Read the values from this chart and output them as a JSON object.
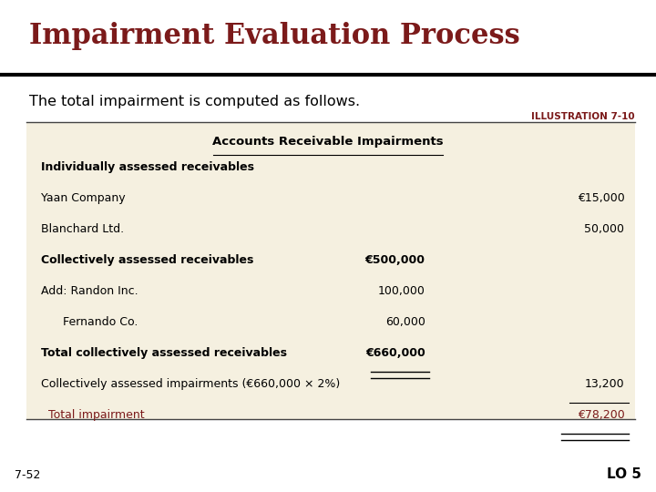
{
  "title": "Impairment Evaluation Process",
  "subtitle": "The total impairment is computed as follows.",
  "illustration_label": "ILLUSTRATION 7-10",
  "table_title": "Accounts Receivable Impairments",
  "bg_color": "#f5f0e0",
  "title_color": "#7b1a1a",
  "page_bg": "#ffffff",
  "footer_left": "7-52",
  "footer_right": "LO 5",
  "rows": [
    {
      "label": "Individually assessed receivables",
      "col1": "",
      "col2": "",
      "bold": true,
      "red": false,
      "underline_col1": false,
      "underline_col2_single": false,
      "underline_col2": false
    },
    {
      "label": "Yaan Company",
      "col1": "",
      "col2": "€15,000",
      "bold": false,
      "red": false,
      "underline_col1": false,
      "underline_col2_single": false,
      "underline_col2": false
    },
    {
      "label": "Blanchard Ltd.",
      "col1": "",
      "col2": "50,000",
      "bold": false,
      "red": false,
      "underline_col1": false,
      "underline_col2_single": false,
      "underline_col2": false
    },
    {
      "label": "Collectively assessed receivables",
      "col1": "€500,000",
      "col2": "",
      "bold": true,
      "red": false,
      "underline_col1": false,
      "underline_col2_single": false,
      "underline_col2": false
    },
    {
      "label": "Add: Randon Inc.",
      "col1": "100,000",
      "col2": "",
      "bold": false,
      "red": false,
      "underline_col1": false,
      "underline_col2_single": false,
      "underline_col2": false
    },
    {
      "label": "      Fernando Co.",
      "col1": "60,000",
      "col2": "",
      "bold": false,
      "red": false,
      "underline_col1": false,
      "underline_col2_single": false,
      "underline_col2": false
    },
    {
      "label": "Total collectively assessed receivables",
      "col1": "€660,000",
      "col2": "",
      "bold": true,
      "red": false,
      "underline_col1": true,
      "underline_col2_single": false,
      "underline_col2": false
    },
    {
      "label": "Collectively assessed impairments (€660,000 × 2%)",
      "col1": "",
      "col2": "13,200",
      "bold": false,
      "red": false,
      "underline_col1": false,
      "underline_col2_single": true,
      "underline_col2": false
    },
    {
      "label": "  Total impairment",
      "col1": "",
      "col2": "€78,200",
      "bold": false,
      "red": true,
      "underline_col1": false,
      "underline_col2_single": false,
      "underline_col2": true
    }
  ]
}
